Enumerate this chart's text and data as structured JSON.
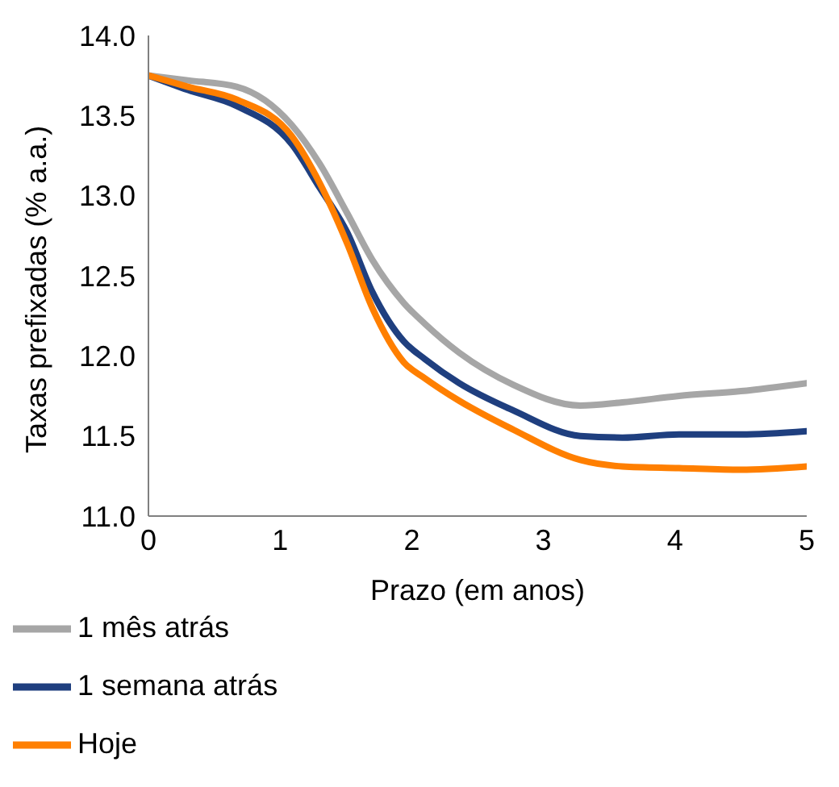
{
  "chart_data": {
    "type": "line",
    "xlabel": "Prazo (em anos)",
    "ylabel": "Taxas prefixadas (% a.a.)",
    "x": [
      0,
      0.3,
      0.67,
      1.09,
      1.3,
      1.51,
      1.7,
      1.94,
      2.1,
      2.36,
      2.77,
      3.28,
      3.6,
      4.03,
      4.5,
      5
    ],
    "series": [
      {
        "name": "1 mês atrás",
        "color": "#a6a6a6",
        "values": [
          13.75,
          13.72,
          13.68,
          13.44,
          13.2,
          12.89,
          12.6,
          12.33,
          12.2,
          12.02,
          11.82,
          11.69,
          11.71,
          11.75,
          11.78,
          11.83
        ]
      },
      {
        "name": "1 semana atrás",
        "color": "#1f3f7f",
        "values": [
          13.75,
          13.66,
          13.56,
          13.32,
          13.05,
          12.77,
          12.4,
          12.09,
          11.98,
          11.83,
          11.66,
          11.5,
          11.49,
          11.51,
          11.51,
          11.53
        ]
      },
      {
        "name": "Hoje",
        "color": "#ff7f00",
        "values": [
          13.75,
          13.68,
          13.6,
          13.37,
          13.08,
          12.7,
          12.3,
          11.96,
          11.86,
          11.72,
          11.54,
          11.35,
          11.31,
          11.3,
          11.29,
          11.31
        ]
      }
    ],
    "xlim": [
      0,
      5
    ],
    "xticks": [
      0,
      1,
      2,
      3,
      4,
      5
    ],
    "ylim": [
      11,
      14
    ],
    "yticks": [
      {
        "value": 11,
        "label": "11.0"
      },
      {
        "value": 11.5,
        "label": "11.5"
      },
      {
        "value": 12,
        "label": "12.0"
      },
      {
        "value": 12.5,
        "label": "12.5"
      },
      {
        "value": 13,
        "label": "13.0"
      },
      {
        "value": 13.5,
        "label": "13.5"
      },
      {
        "value": 14,
        "label": "14.0"
      }
    ],
    "grid": false,
    "legend": "bottom left",
    "marker": "none",
    "line_style": "solid"
  }
}
